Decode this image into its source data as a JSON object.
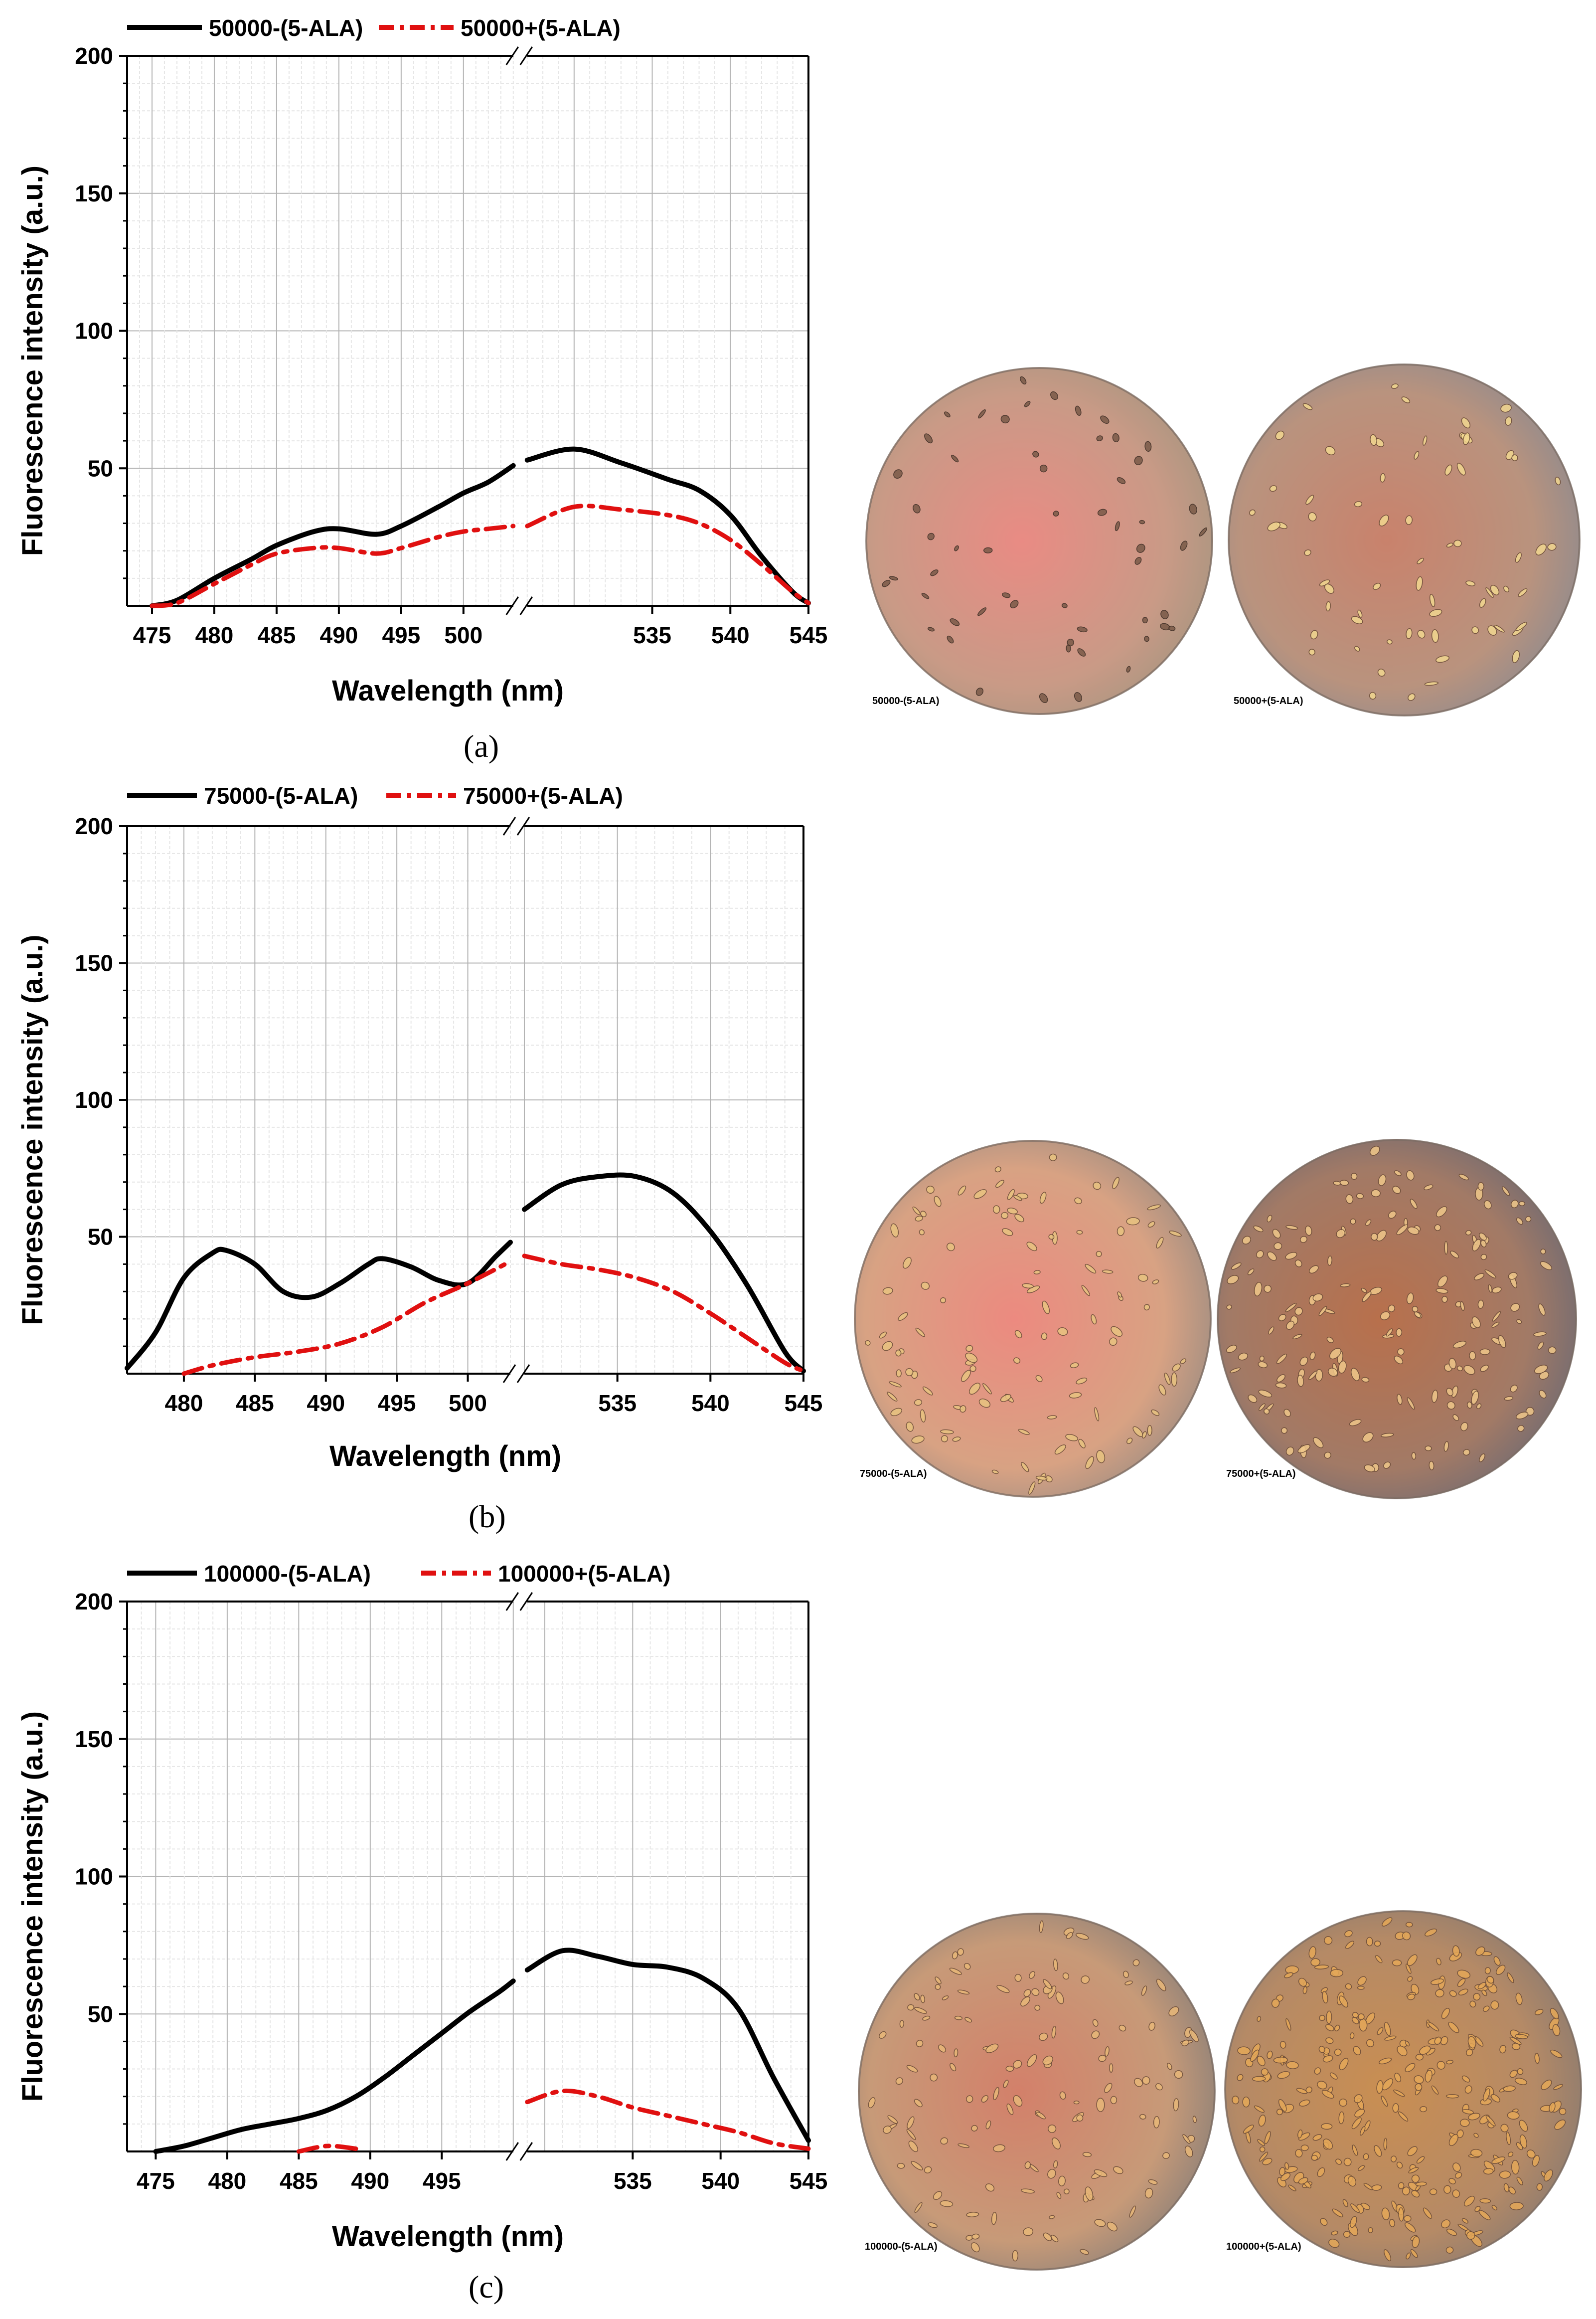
{
  "chart_data": [
    {
      "type": "line",
      "panel": "a",
      "caption": "(a)",
      "xlabel": "Wavelength (nm)",
      "ylabel": "Fluorescence intensity  (a.u.)",
      "yticks": [
        "50",
        "100",
        "150",
        "200"
      ],
      "ylim": [
        0,
        200
      ],
      "xticks_left": [
        "475",
        "480",
        "485",
        "490",
        "495",
        "500"
      ],
      "xticks_right": [
        "535",
        "540",
        "545"
      ],
      "x_left_range": [
        473,
        504
      ],
      "x_right_range": [
        527,
        545
      ],
      "legend": [
        "50000-(5-ALA)",
        "50000+(5-ALA)"
      ],
      "series": [
        {
          "name": "50000-(5-ALA)",
          "color": "#000000",
          "style": "solid",
          "left": [
            [
              475,
              0
            ],
            [
              477,
              2
            ],
            [
              480,
              10
            ],
            [
              483,
              17
            ],
            [
              485,
              22
            ],
            [
              488,
              27
            ],
            [
              490,
              28
            ],
            [
              493,
              26
            ],
            [
              495,
              29
            ],
            [
              498,
              36
            ],
            [
              500,
              41
            ],
            [
              502,
              45
            ],
            [
              504,
              51
            ]
          ],
          "right": [
            [
              527,
              53
            ],
            [
              530,
              57
            ],
            [
              533,
              52
            ],
            [
              536,
              46
            ],
            [
              538,
              42
            ],
            [
              540,
              33
            ],
            [
              542,
              18
            ],
            [
              544,
              5
            ],
            [
              545,
              1
            ]
          ]
        },
        {
          "name": "50000+(5-ALA)",
          "color": "#e01010",
          "style": "dashdot",
          "left": [
            [
              475,
              0
            ],
            [
              477,
              1
            ],
            [
              480,
              8
            ],
            [
              483,
              15
            ],
            [
              485,
              19
            ],
            [
              488,
              21
            ],
            [
              490,
              21
            ],
            [
              493,
              19
            ],
            [
              495,
              21
            ],
            [
              498,
              25
            ],
            [
              500,
              27
            ],
            [
              502,
              28
            ],
            [
              504,
              29
            ]
          ],
          "right": [
            [
              527,
              29
            ],
            [
              530,
              36
            ],
            [
              533,
              35
            ],
            [
              536,
              33
            ],
            [
              538,
              30
            ],
            [
              540,
              24
            ],
            [
              542,
              15
            ],
            [
              544,
              5
            ],
            [
              545,
              1
            ]
          ]
        }
      ],
      "micrographs": [
        "50000-(5-ALA)",
        "50000+(5-ALA)"
      ]
    },
    {
      "type": "line",
      "panel": "b",
      "caption": "(b)",
      "xlabel": "Wavelength (nm)",
      "ylabel": "Fluorescence intensity (a.u.)",
      "yticks": [
        "50",
        "100",
        "150",
        "200"
      ],
      "ylim": [
        0,
        200
      ],
      "xticks_left": [
        "480",
        "485",
        "490",
        "495",
        "500"
      ],
      "xticks_right": [
        "535",
        "540",
        "545"
      ],
      "x_left_range": [
        476,
        503
      ],
      "x_right_range": [
        530,
        545
      ],
      "legend": [
        "75000-(5-ALA)",
        "75000+(5-ALA)"
      ],
      "series": [
        {
          "name": "75000-(5-ALA)",
          "color": "#000000",
          "style": "solid",
          "left": [
            [
              476,
              2
            ],
            [
              478,
              15
            ],
            [
              480,
              35
            ],
            [
              482,
              44
            ],
            [
              483,
              45
            ],
            [
              485,
              40
            ],
            [
              487,
              30
            ],
            [
              489,
              28
            ],
            [
              491,
              33
            ],
            [
              493,
              40
            ],
            [
              494,
              42
            ],
            [
              496,
              39
            ],
            [
              498,
              34
            ],
            [
              500,
              33
            ],
            [
              502,
              43
            ],
            [
              503,
              48
            ]
          ],
          "right": [
            [
              530,
              60
            ],
            [
              532,
              69
            ],
            [
              534,
              72
            ],
            [
              536,
              72
            ],
            [
              538,
              66
            ],
            [
              540,
              52
            ],
            [
              542,
              32
            ],
            [
              544,
              8
            ],
            [
              545,
              1
            ]
          ]
        },
        {
          "name": "75000+(5-ALA)",
          "color": "#e01010",
          "style": "dashdot",
          "left": [
            [
              480,
              0
            ],
            [
              482,
              3
            ],
            [
              485,
              6
            ],
            [
              488,
              8
            ],
            [
              491,
              11
            ],
            [
              494,
              17
            ],
            [
              497,
              26
            ],
            [
              500,
              33
            ],
            [
              503,
              41
            ]
          ],
          "right": [
            [
              530,
              43
            ],
            [
              532,
              40
            ],
            [
              534,
              38
            ],
            [
              536,
              35
            ],
            [
              538,
              30
            ],
            [
              540,
              22
            ],
            [
              542,
              13
            ],
            [
              544,
              4
            ],
            [
              545,
              1
            ]
          ]
        }
      ],
      "micrographs": [
        "75000-(5-ALA)",
        "75000+(5-ALA)"
      ]
    },
    {
      "type": "line",
      "panel": "c",
      "caption": "(c)",
      "xlabel": "Wavelength (nm)",
      "ylabel": "Fluorescence intensity  (a.u.)",
      "yticks": [
        "50",
        "100",
        "150",
        "200"
      ],
      "ylim": [
        0,
        200
      ],
      "xticks_left": [
        "475",
        "480",
        "485",
        "490",
        "495"
      ],
      "xticks_right": [
        "535",
        "540",
        "545"
      ],
      "x_left_range": [
        473,
        500
      ],
      "x_right_range": [
        529,
        545
      ],
      "legend": [
        "100000-(5-ALA)",
        "100000+(5-ALA)"
      ],
      "series": [
        {
          "name": "100000-(5-ALA)",
          "color": "#000000",
          "style": "solid",
          "left": [
            [
              475,
              0
            ],
            [
              477,
              2
            ],
            [
              479,
              5
            ],
            [
              481,
              8
            ],
            [
              483,
              10
            ],
            [
              485,
              12
            ],
            [
              487,
              15
            ],
            [
              489,
              20
            ],
            [
              491,
              27
            ],
            [
              493,
              35
            ],
            [
              495,
              43
            ],
            [
              497,
              51
            ],
            [
              499,
              58
            ],
            [
              500,
              62
            ]
          ],
          "right": [
            [
              529,
              66
            ],
            [
              531,
              73
            ],
            [
              533,
              71
            ],
            [
              535,
              68
            ],
            [
              537,
              67
            ],
            [
              539,
              63
            ],
            [
              541,
              52
            ],
            [
              543,
              27
            ],
            [
              545,
              4
            ]
          ]
        },
        {
          "name": "100000+(5-ALA)",
          "color": "#e01010",
          "style": "dashdot",
          "left": [
            [
              485,
              0
            ],
            [
              487,
              2
            ],
            [
              489,
              1
            ]
          ],
          "right": [
            [
              529,
              18
            ],
            [
              531,
              22
            ],
            [
              533,
              20
            ],
            [
              535,
              16
            ],
            [
              537,
              13
            ],
            [
              539,
              10
            ],
            [
              541,
              7
            ],
            [
              543,
              3
            ],
            [
              545,
              1
            ]
          ]
        }
      ],
      "micrographs": [
        "100000-(5-ALA)",
        "100000+(5-ALA)"
      ]
    }
  ]
}
